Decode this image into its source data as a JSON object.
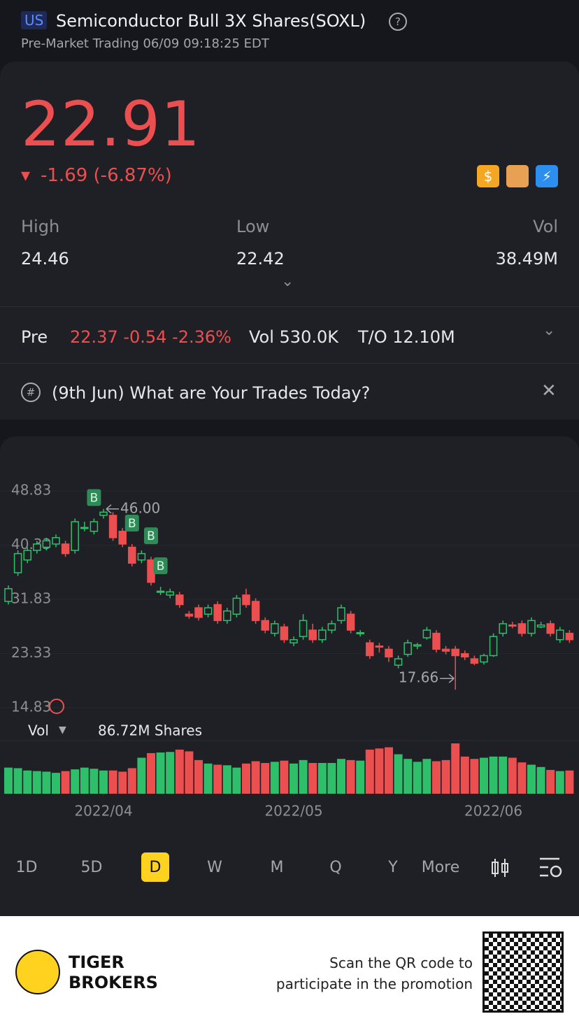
{
  "header": {
    "market": "US",
    "title": "Semiconductor Bull 3X Shares(SOXL)",
    "subtitle": "Pre-Market Trading 06/09 09:18:25 EDT"
  },
  "quote": {
    "price": "22.91",
    "change": "-1.69 (-6.87%)",
    "stats": [
      {
        "label": "High",
        "value": "24.46"
      },
      {
        "label": "Low",
        "value": "22.42"
      },
      {
        "label": "Vol",
        "value": "38.49M"
      }
    ]
  },
  "pre": {
    "label": "Pre",
    "values": "22.37 -0.54 -2.36%",
    "vol": "Vol 530.0K",
    "turnover": "T/O 12.10M"
  },
  "topic": {
    "text": "(9th Jun) What are Your Trades Today?"
  },
  "chart_data": {
    "type": "candlestick",
    "up_color": "#2fbf6a",
    "down_color": "#ec4f50",
    "open": [
      31.5,
      36,
      38,
      39.5,
      40,
      40.5,
      40.5,
      39.5,
      43,
      42.5,
      45,
      45,
      42.5,
      40,
      38,
      38,
      33,
      32.5,
      32.5,
      29.5,
      30.5,
      29.5,
      31,
      28.5,
      29.5,
      32.5,
      31.5,
      28.5,
      26.5,
      27.5,
      25,
      26,
      27,
      25.5,
      27,
      28.5,
      29.5,
      26.5,
      25,
      24.5,
      24,
      21.5,
      23.2,
      24.5,
      25.8,
      26.5,
      24,
      24,
      23.3,
      22.5,
      22,
      23,
      26.5,
      27.8,
      28,
      26.5,
      27.5,
      28,
      25.5,
      26.5
    ],
    "close": [
      33.5,
      39,
      39.5,
      40.5,
      41,
      41.5,
      39,
      44,
      43.1,
      44,
      45.5,
      41.5,
      40.5,
      37.5,
      39,
      34.5,
      33.1,
      33,
      31,
      29.2,
      29,
      30.5,
      28.5,
      30,
      32,
      31,
      28.5,
      27,
      28,
      25.5,
      25.5,
      28.5,
      25.5,
      27,
      28,
      30.5,
      27,
      26.6,
      23,
      24.4,
      22.8,
      22.5,
      25,
      24.7,
      27,
      24,
      23.7,
      23,
      22.8,
      21.8,
      23,
      26,
      28,
      27.7,
      26.5,
      28.5,
      27.8,
      26.5,
      27,
      25.5
    ],
    "high": [
      34,
      39.5,
      40,
      41,
      41.5,
      42,
      41,
      44.5,
      44,
      44.5,
      46,
      45.5,
      43,
      40.5,
      39.5,
      38.5,
      33.8,
      33.5,
      33,
      30,
      31,
      31,
      31.5,
      30.5,
      32.5,
      33.5,
      32,
      29,
      28.5,
      28,
      26,
      29.5,
      28,
      27.5,
      28.5,
      31,
      30,
      27,
      25.5,
      25,
      24.5,
      23,
      25.5,
      25,
      27.5,
      27,
      24.5,
      24.5,
      23.8,
      23,
      23.3,
      26.5,
      28.5,
      28.3,
      28.5,
      29,
      28.3,
      28.5,
      27.5,
      27
    ],
    "low": [
      31,
      35.5,
      37.5,
      39,
      39.5,
      40,
      38.5,
      39,
      42.5,
      42,
      44.5,
      41,
      40,
      37,
      37.5,
      34,
      32.5,
      32,
      30.5,
      28.8,
      28.5,
      29,
      28,
      28,
      29,
      30.5,
      28,
      26.5,
      26,
      25,
      24.5,
      25.5,
      25,
      25,
      26.5,
      28,
      26.5,
      26,
      22.5,
      23.5,
      22,
      21,
      22.8,
      24,
      25.5,
      23.5,
      23.2,
      17.66,
      22.3,
      21.5,
      21.6,
      22.8,
      26,
      27.3,
      26,
      26,
      27.3,
      26,
      25,
      25
    ],
    "ylim": [
      14.83,
      48.83
    ],
    "yticks": [
      48.83,
      40.33,
      31.83,
      23.33,
      14.83
    ],
    "xticks": [
      {
        "value": 10,
        "label": "2022/04"
      },
      {
        "value": 30,
        "label": "2022/05"
      },
      {
        "value": 51,
        "label": "2022/06"
      }
    ],
    "high_label": {
      "index": 10,
      "value": 46,
      "label": "46.00"
    },
    "low_label": {
      "index": 47,
      "value": 17.66
    },
    "buy_markers": [
      {
        "label": "B",
        "index": 9
      },
      {
        "label": "B",
        "index": 13
      },
      {
        "label": "B",
        "index": 15
      },
      {
        "label": "B",
        "index": 16
      }
    ],
    "volume": {
      "label": "Vol",
      "value_text": "86.72M Shares",
      "ylim": [
        0,
        100
      ],
      "values": [
        45,
        44,
        40,
        39,
        38,
        36,
        39,
        42,
        45,
        43,
        40,
        40,
        38,
        44,
        62,
        70,
        71,
        72,
        76,
        73,
        58,
        52,
        50,
        49,
        45,
        52,
        56,
        53,
        55,
        57,
        52,
        58,
        53,
        53,
        53,
        60,
        58,
        57,
        76,
        78,
        80,
        68,
        60,
        55,
        60,
        56,
        58,
        86.72,
        64,
        60,
        62,
        64,
        64,
        62,
        54,
        50,
        46,
        41,
        39,
        40
      ]
    }
  },
  "tabs": {
    "items": [
      "1D",
      "5D",
      "D",
      "W",
      "M",
      "Q",
      "Y",
      "More"
    ],
    "selected": 2
  },
  "footer": {
    "brand_top": "TIGER",
    "brand_bottom": "BROKERS",
    "promo_1": "Scan the QR code to",
    "promo_2": "participate in the promotion"
  }
}
